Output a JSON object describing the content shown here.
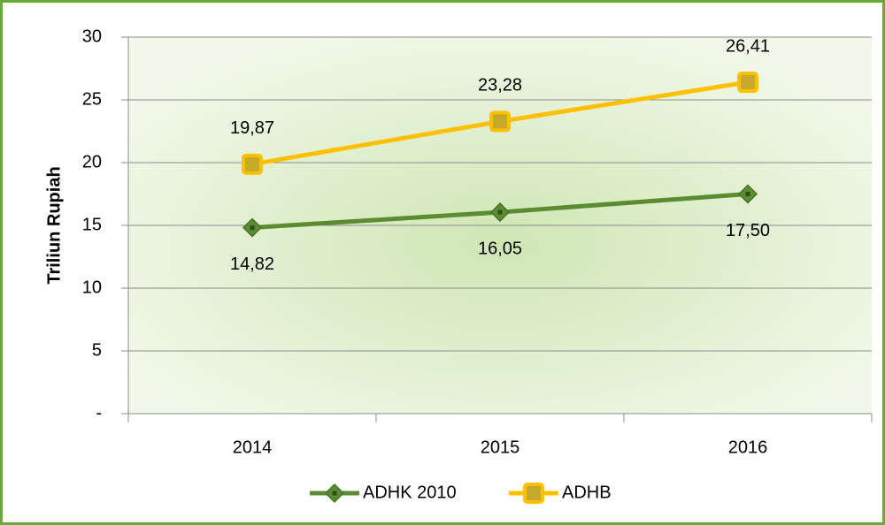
{
  "chart_data": {
    "type": "line",
    "y_label": "Triliun Rupiah",
    "categories": [
      "2014",
      "2015",
      "2016"
    ],
    "series": [
      {
        "name": "ADHK 2010",
        "color": "#5b8c32",
        "marker": "diamond",
        "values": [
          14.82,
          16.05,
          17.5
        ],
        "value_labels": [
          "14,82",
          "16,05",
          "17,50"
        ]
      },
      {
        "name": "ADHB",
        "color": "#ffc000",
        "marker": "square",
        "values": [
          19.87,
          23.28,
          26.41
        ],
        "value_labels": [
          "19,87",
          "23,28",
          "26,41"
        ]
      }
    ],
    "ylim": [
      0,
      30
    ],
    "yticks": [
      {
        "value": 0,
        "label": "-"
      },
      5,
      10,
      15,
      20,
      25,
      30
    ],
    "grid": true,
    "legend": "bottom"
  }
}
